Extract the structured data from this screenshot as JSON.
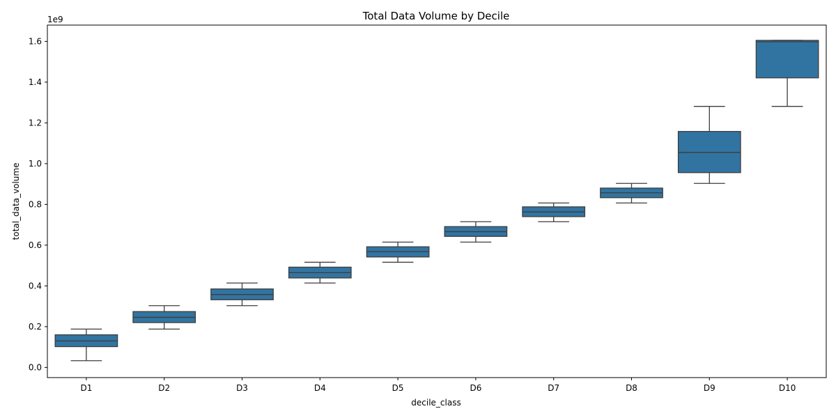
{
  "chart_data": {
    "type": "box",
    "title": "Total Data Volume by Decile",
    "xlabel": "decile_class",
    "ylabel": "total_data_volume",
    "y_offset_label": "1e9",
    "y_scale": 1000000000,
    "ylim": [
      -0.05,
      1.68
    ],
    "yticks": [
      0.0,
      0.2,
      0.4,
      0.6,
      0.8,
      1.0,
      1.2,
      1.4,
      1.6
    ],
    "ytick_labels": [
      "0.0",
      "0.2",
      "0.4",
      "0.6",
      "0.8",
      "1.0",
      "1.2",
      "1.4",
      "1.6"
    ],
    "grid": false,
    "box_color": "#3274a1",
    "line_color": "#3d3d3d",
    "categories": [
      "D1",
      "D2",
      "D3",
      "D4",
      "D5",
      "D6",
      "D7",
      "D8",
      "D9",
      "D10"
    ],
    "boxes": [
      {
        "category": "D1",
        "whisker_low": 0.033,
        "q1": 0.102,
        "median": 0.13,
        "q3": 0.16,
        "whisker_high": 0.188
      },
      {
        "category": "D2",
        "whisker_low": 0.188,
        "q1": 0.22,
        "median": 0.246,
        "q3": 0.274,
        "whisker_high": 0.303
      },
      {
        "category": "D3",
        "whisker_low": 0.303,
        "q1": 0.332,
        "median": 0.358,
        "q3": 0.385,
        "whisker_high": 0.414
      },
      {
        "category": "D4",
        "whisker_low": 0.414,
        "q1": 0.439,
        "median": 0.465,
        "q3": 0.492,
        "whisker_high": 0.516
      },
      {
        "category": "D5",
        "whisker_low": 0.516,
        "q1": 0.542,
        "median": 0.568,
        "q3": 0.592,
        "whisker_high": 0.615
      },
      {
        "category": "D6",
        "whisker_low": 0.615,
        "q1": 0.643,
        "median": 0.666,
        "q3": 0.691,
        "whisker_high": 0.715
      },
      {
        "category": "D7",
        "whisker_low": 0.715,
        "q1": 0.74,
        "median": 0.763,
        "q3": 0.788,
        "whisker_high": 0.807
      },
      {
        "category": "D8",
        "whisker_low": 0.807,
        "q1": 0.833,
        "median": 0.857,
        "q3": 0.88,
        "whisker_high": 0.903
      },
      {
        "category": "D9",
        "whisker_low": 0.903,
        "q1": 0.956,
        "median": 1.055,
        "q3": 1.158,
        "whisker_high": 1.281
      },
      {
        "category": "D10",
        "whisker_low": 1.281,
        "q1": 1.421,
        "median": 1.598,
        "q3": 1.605,
        "whisker_high": 1.605
      }
    ]
  }
}
